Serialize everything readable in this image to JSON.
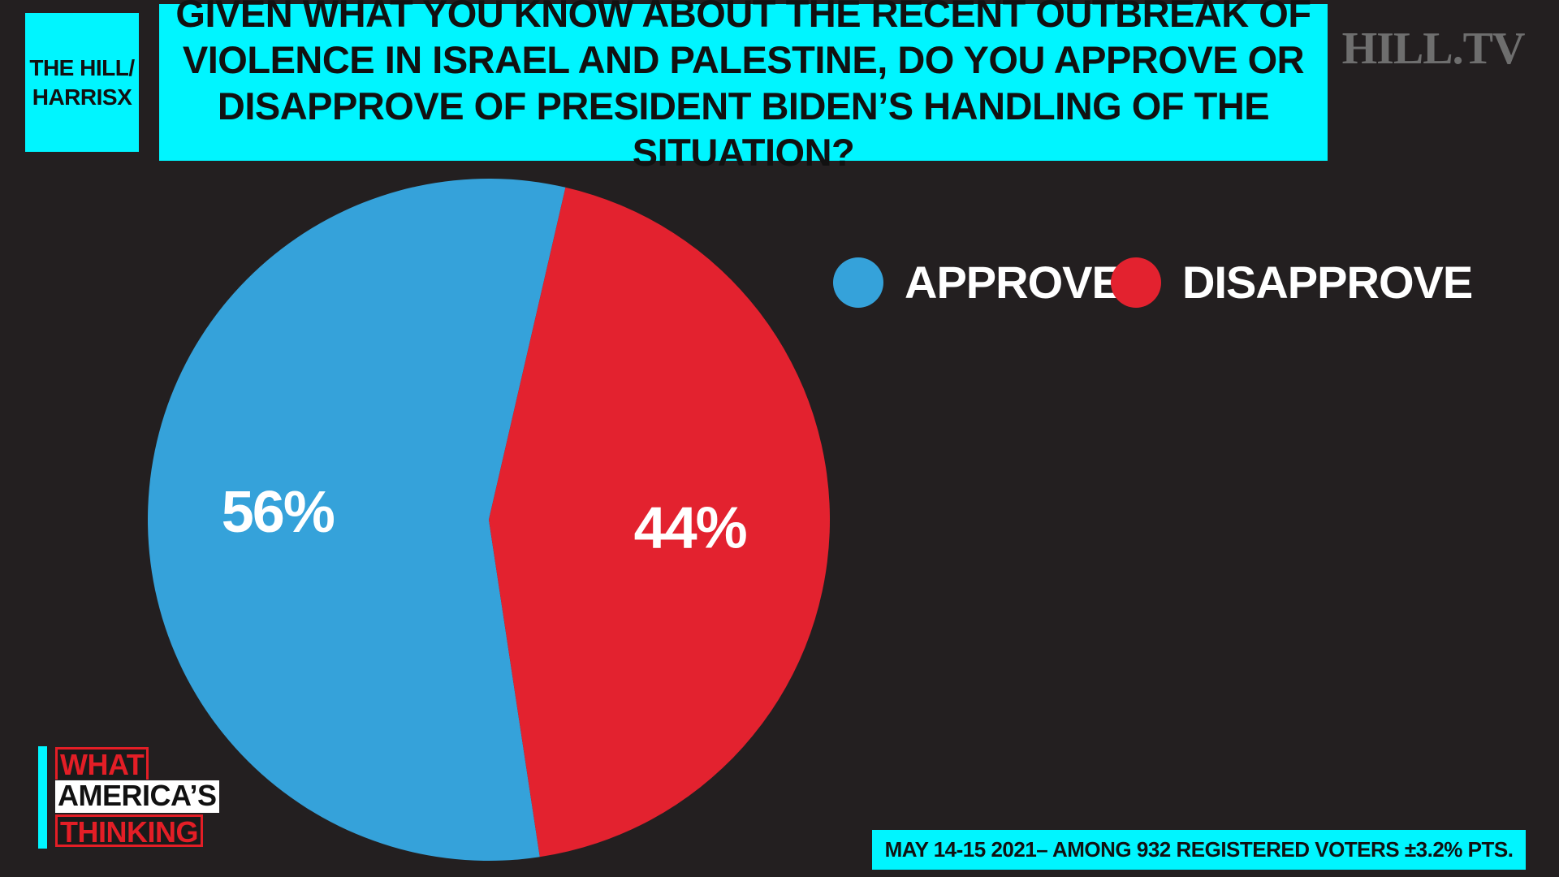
{
  "source": {
    "line1": "THE HILL/",
    "line2": "HARRISX"
  },
  "title": "GIVEN WHAT YOU KNOW ABOUT THE RECENT OUTBREAK OF VIOLENCE IN ISRAEL AND PALESTINE, DO YOU APPROVE OR DISAPPROVE OF PRESIDENT BIDEN’S HANDLING OF THE SITUATION?",
  "brand": "HILL.TV",
  "show_logo": {
    "line1": "WHAT",
    "line2": "AMERICA’S",
    "line3": "THINKING"
  },
  "footer": "MAY 14-15 2021– AMONG 932 REGISTERED VOTERS ±3.2% PTS.",
  "colors": {
    "background": "#231f20",
    "accent": "#00f5ff",
    "approve": "#35a2da",
    "disapprove": "#e3222f"
  },
  "chart_data": {
    "type": "pie",
    "title": "GIVEN WHAT YOU KNOW ABOUT THE RECENT OUTBREAK OF VIOLENCE IN ISRAEL AND PALESTINE, DO YOU APPROVE OR DISAPPROVE OF PRESIDENT BIDEN’S HANDLING OF THE SITUATION?",
    "legend_position": "top-right",
    "slices": [
      {
        "label": "APPROVE",
        "value": 56,
        "display": "56%",
        "color": "#35a2da"
      },
      {
        "label": "DISAPPROVE",
        "value": 44,
        "display": "44%",
        "color": "#e3222f"
      }
    ]
  }
}
